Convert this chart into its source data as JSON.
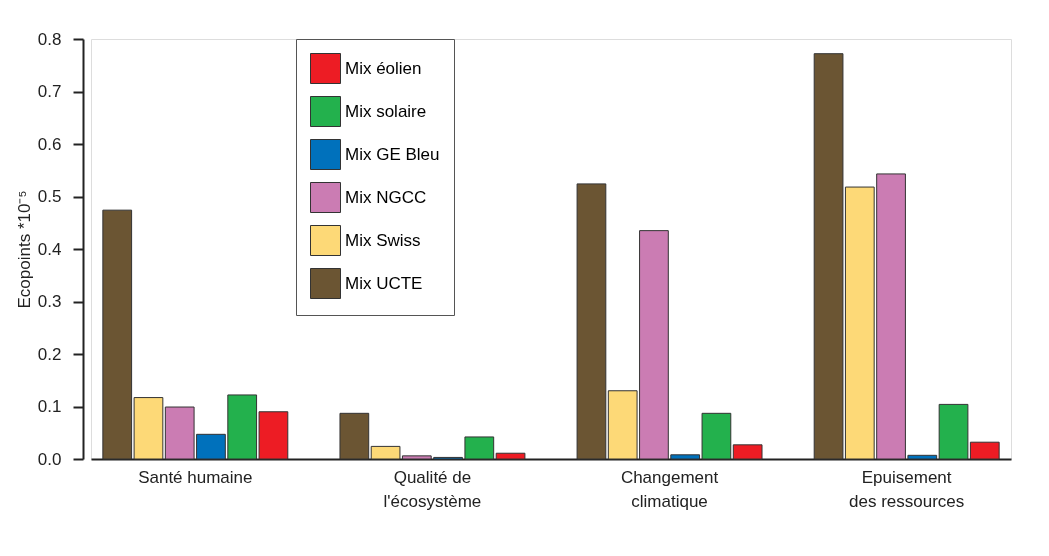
{
  "chart_data": {
    "type": "bar",
    "ylabel": "Ecopoints *10⁻⁵",
    "categories": [
      "Santé humaine",
      "Qualité de\nl'écosystème",
      "Changement\nclimatique",
      "Epuisement\ndes ressources"
    ],
    "series": [
      {
        "name": "Mix UCTE",
        "color": "#6b5533",
        "values": [
          0.474,
          0.087,
          0.524,
          0.772
        ]
      },
      {
        "name": "Mix Swiss",
        "color": "#fdd977",
        "values": [
          0.117,
          0.024,
          0.13,
          0.518
        ]
      },
      {
        "name": "Mix NGCC",
        "color": "#cb7cb3",
        "values": [
          0.099,
          0.006,
          0.435,
          0.543
        ]
      },
      {
        "name": "Mix GE Bleu",
        "color": "#0071bc",
        "values": [
          0.047,
          0.003,
          0.008,
          0.007
        ]
      },
      {
        "name": "Mix solaire",
        "color": "#23b14d",
        "values": [
          0.122,
          0.042,
          0.087,
          0.104
        ]
      },
      {
        "name": "Mix éolien",
        "color": "#ed1c24",
        "values": [
          0.09,
          0.011,
          0.027,
          0.032
        ]
      }
    ],
    "ylim": [
      0,
      0.8
    ],
    "yticks": [
      {
        "value": 0,
        "label": "0.0"
      },
      0.1,
      0.2,
      0.3,
      0.4,
      0.5,
      0.6,
      0.7,
      0.8
    ],
    "grid": false,
    "legend": "top left"
  }
}
